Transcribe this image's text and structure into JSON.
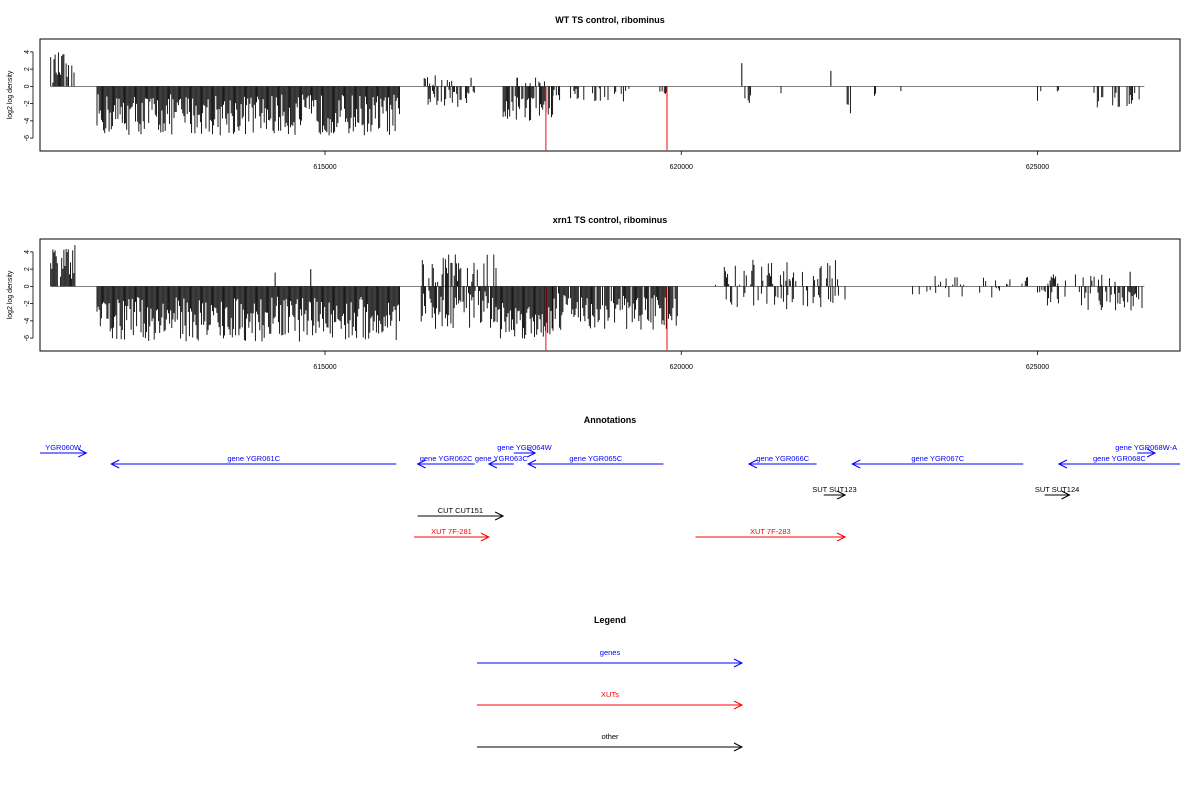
{
  "chart_data": [
    {
      "type": "bar",
      "title": "WT TS control, ribominus",
      "ylabel": "log2 log density",
      "ylim": [
        -7.5,
        5.5
      ],
      "yticks": [
        -6,
        -4,
        -2,
        0,
        2,
        4
      ],
      "ytick_labels": [
        "-6",
        "-4",
        "-2",
        "0",
        "2",
        "4"
      ],
      "xlim": [
        611000,
        627000
      ],
      "xticks": [
        615000,
        620000,
        625000
      ],
      "xtick_labels": [
        "615000",
        "620000",
        "625000"
      ],
      "grid": false,
      "colors": {
        "bars": "#000000",
        "highlight": "#ff0000",
        "baseline": "#000000"
      },
      "highlights": [
        {
          "x": 618100,
          "value": -7.4
        },
        {
          "x": 619800,
          "value": -7.4
        }
      ],
      "series": [
        {
          "x_start": 611150,
          "x_end": 611400,
          "mean": 2.2,
          "spread": 1.8,
          "neg": false,
          "density": 0.9
        },
        {
          "x_start": 611400,
          "x_end": 611500,
          "mean": 2.0,
          "spread": 0.5,
          "neg": false,
          "density": 0.4
        },
        {
          "x_start": 611800,
          "x_end": 616050,
          "mean": -3.3,
          "spread": 2.4,
          "neg": true,
          "density": 1.0
        },
        {
          "x_start": 616300,
          "x_end": 616900,
          "mean": 0.6,
          "spread": 0.8,
          "neg": false,
          "density": 0.35
        },
        {
          "x_start": 616400,
          "x_end": 617100,
          "mean": -1.5,
          "spread": 1.2,
          "neg": true,
          "density": 0.35
        },
        {
          "x_start": 617500,
          "x_end": 618200,
          "mean": -2.4,
          "spread": 1.6,
          "neg": true,
          "density": 0.85
        },
        {
          "x_start": 617600,
          "x_end": 618100,
          "mean": 0.6,
          "spread": 0.5,
          "neg": false,
          "density": 0.3
        },
        {
          "x_start": 618200,
          "x_end": 619300,
          "mean": -1.0,
          "spread": 0.8,
          "neg": true,
          "density": 0.35
        },
        {
          "x_start": 619700,
          "x_end": 619850,
          "mean": -0.8,
          "spread": 0.4,
          "neg": true,
          "density": 0.3
        },
        {
          "x_start": 620800,
          "x_end": 621000,
          "mean": -1.6,
          "spread": 0.6,
          "neg": true,
          "density": 0.2
        },
        {
          "x_start": 621400,
          "x_end": 621500,
          "mean": -0.8,
          "spread": 0.2,
          "neg": true,
          "density": 0.2
        },
        {
          "x_start": 622250,
          "x_end": 622400,
          "mean": -2.6,
          "spread": 0.6,
          "neg": true,
          "density": 0.2
        },
        {
          "x_start": 622650,
          "x_end": 623200,
          "mean": -1.1,
          "spread": 0.6,
          "neg": true,
          "density": 0.15
        },
        {
          "x_start": 625000,
          "x_end": 625300,
          "mean": -1.2,
          "spread": 0.8,
          "neg": true,
          "density": 0.2
        },
        {
          "x_start": 625700,
          "x_end": 626450,
          "mean": -1.5,
          "spread": 1.0,
          "neg": true,
          "density": 0.45
        }
      ],
      "spikes": [
        {
          "x": 620850,
          "value": 2.7
        },
        {
          "x": 622100,
          "value": 1.8
        },
        {
          "x": 617050,
          "value": 1.0
        },
        {
          "x": 617700,
          "value": 1.0
        }
      ]
    },
    {
      "type": "bar",
      "title": "xrn1 TS control, ribominus",
      "ylabel": "log2 log density",
      "ylim": [
        -7.5,
        5.5
      ],
      "yticks": [
        -6,
        -4,
        -2,
        0,
        2,
        4
      ],
      "ytick_labels": [
        "-6",
        "-4",
        "-2",
        "0",
        "2",
        "4"
      ],
      "xlim": [
        611000,
        627000
      ],
      "xticks": [
        615000,
        620000,
        625000
      ],
      "xtick_labels": [
        "615000",
        "620000",
        "625000"
      ],
      "grid": false,
      "colors": {
        "bars": "#000000",
        "highlight": "#ff0000",
        "baseline": "#000000"
      },
      "highlights": [
        {
          "x": 618100,
          "value": -7.4
        },
        {
          "x": 619800,
          "value": -7.4
        }
      ],
      "series": [
        {
          "x_start": 611150,
          "x_end": 611500,
          "mean": 2.8,
          "spread": 2.0,
          "neg": false,
          "density": 0.9
        },
        {
          "x_start": 611800,
          "x_end": 616050,
          "mean": -3.8,
          "spread": 2.6,
          "neg": true,
          "density": 1.0
        },
        {
          "x_start": 616350,
          "x_end": 617400,
          "mean": 2.0,
          "spread": 1.8,
          "neg": false,
          "density": 0.55
        },
        {
          "x_start": 616350,
          "x_end": 617400,
          "mean": -2.6,
          "spread": 2.4,
          "neg": true,
          "density": 0.8
        },
        {
          "x_start": 617400,
          "x_end": 618200,
          "mean": -4.0,
          "spread": 2.2,
          "neg": true,
          "density": 1.0
        },
        {
          "x_start": 618200,
          "x_end": 619950,
          "mean": -3.0,
          "spread": 2.2,
          "neg": true,
          "density": 0.9
        },
        {
          "x_start": 620450,
          "x_end": 622200,
          "mean": 1.5,
          "spread": 1.6,
          "neg": false,
          "density": 0.4
        },
        {
          "x_start": 620600,
          "x_end": 622300,
          "mean": -1.6,
          "spread": 1.2,
          "neg": true,
          "density": 0.3
        },
        {
          "x_start": 623100,
          "x_end": 624900,
          "mean": 0.6,
          "spread": 0.6,
          "neg": false,
          "density": 0.15
        },
        {
          "x_start": 623200,
          "x_end": 624600,
          "mean": -0.8,
          "spread": 0.6,
          "neg": true,
          "density": 0.15
        },
        {
          "x_start": 625000,
          "x_end": 626500,
          "mean": -1.6,
          "spread": 1.2,
          "neg": true,
          "density": 0.45
        },
        {
          "x_start": 625100,
          "x_end": 626300,
          "mean": 0.8,
          "spread": 0.6,
          "neg": false,
          "density": 0.2
        }
      ],
      "spikes": [
        {
          "x": 614300,
          "value": 1.6
        },
        {
          "x": 614800,
          "value": 2.0
        },
        {
          "x": 626300,
          "value": 1.7
        }
      ]
    }
  ],
  "annotations": {
    "title": "Annotations",
    "colors": {
      "gene": "#0000ff",
      "xut": "#ff0000",
      "other": "#000000"
    },
    "items": [
      {
        "label": "YGR060W",
        "kind": "gene",
        "dir": "right",
        "start": 611000,
        "end": 611650,
        "row": 0
      },
      {
        "label": "gene YGR064W",
        "kind": "gene",
        "dir": "right",
        "start": 617650,
        "end": 617950,
        "row": 0
      },
      {
        "label": "gene YGR068W-A",
        "kind": "gene",
        "dir": "right",
        "start": 626400,
        "end": 626650,
        "row": 0
      },
      {
        "label": "gene YGR061C",
        "kind": "gene",
        "dir": "left",
        "start": 612000,
        "end": 616000,
        "row": 1
      },
      {
        "label": "gene YGR062C",
        "kind": "gene",
        "dir": "left",
        "start": 616300,
        "end": 617100,
        "row": 1
      },
      {
        "label": "gene YGR063C",
        "kind": "gene",
        "dir": "left",
        "start": 617300,
        "end": 617650,
        "row": 1
      },
      {
        "label": "gene YGR065C",
        "kind": "gene",
        "dir": "left",
        "start": 617850,
        "end": 619750,
        "row": 1
      },
      {
        "label": "gene YGR066C",
        "kind": "gene",
        "dir": "left",
        "start": 620950,
        "end": 621900,
        "row": 1
      },
      {
        "label": "gene YGR067C",
        "kind": "gene",
        "dir": "left",
        "start": 622400,
        "end": 624800,
        "row": 1
      },
      {
        "label": "gene YGR068C",
        "kind": "gene",
        "dir": "left",
        "start": 625300,
        "end": 627000,
        "row": 1
      },
      {
        "label": "SUT SUT123",
        "kind": "other",
        "dir": "right",
        "start": 622000,
        "end": 622300,
        "row": 2
      },
      {
        "label": "SUT SUT124",
        "kind": "other",
        "dir": "right",
        "start": 625100,
        "end": 625450,
        "row": 2
      },
      {
        "label": "CUT CUT151",
        "kind": "other",
        "dir": "right",
        "start": 616300,
        "end": 617500,
        "row": 3
      },
      {
        "label": "XUT 7F-281",
        "kind": "xut",
        "dir": "right",
        "start": 616250,
        "end": 617300,
        "row": 4
      },
      {
        "label": "XUT 7F-283",
        "kind": "xut",
        "dir": "right",
        "start": 620200,
        "end": 622300,
        "row": 4
      }
    ]
  },
  "legend": {
    "title": "Legend",
    "items": [
      {
        "label": "genes",
        "color": "#0000ff"
      },
      {
        "label": "XUTs",
        "color": "#ff0000"
      },
      {
        "label": "other",
        "color": "#000000"
      }
    ]
  }
}
